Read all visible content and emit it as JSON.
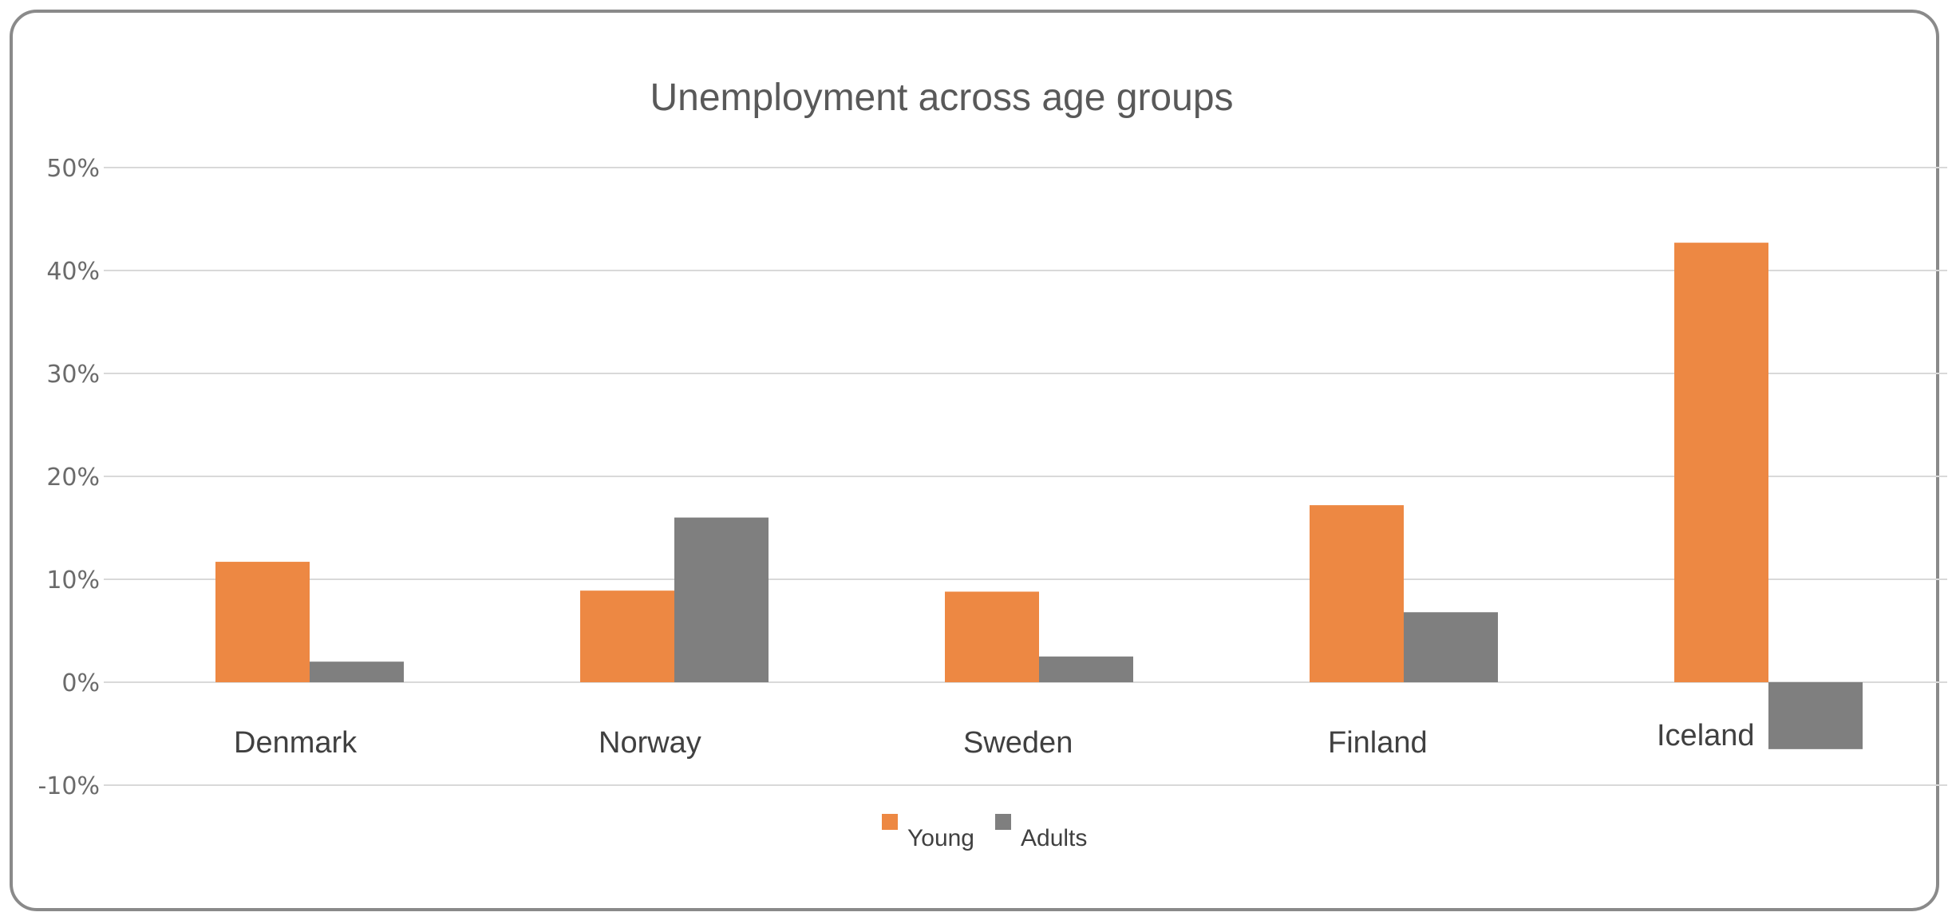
{
  "chart_data": {
    "type": "bar",
    "title": "Unemployment across age groups",
    "xlabel": "",
    "ylabel": "",
    "categories": [
      "Denmark",
      "Norway",
      "Sweden",
      "Finland",
      "Iceland"
    ],
    "series": [
      {
        "name": "Young",
        "color": "#ED8843",
        "values": [
          11.7,
          8.9,
          8.8,
          17.2,
          42.7
        ]
      },
      {
        "name": "Adults",
        "color": "#7F7F7F",
        "values": [
          2.0,
          16.0,
          2.5,
          6.8,
          -6.5
        ]
      }
    ],
    "ylim": [
      -10,
      50
    ],
    "yticks": [
      "-10%",
      "0%",
      "10%",
      "20%",
      "30%",
      "40%",
      "50%"
    ],
    "ytick_values": [
      -10,
      0,
      10,
      20,
      30,
      40,
      50
    ],
    "grid": true,
    "legend_position": "bottom"
  }
}
